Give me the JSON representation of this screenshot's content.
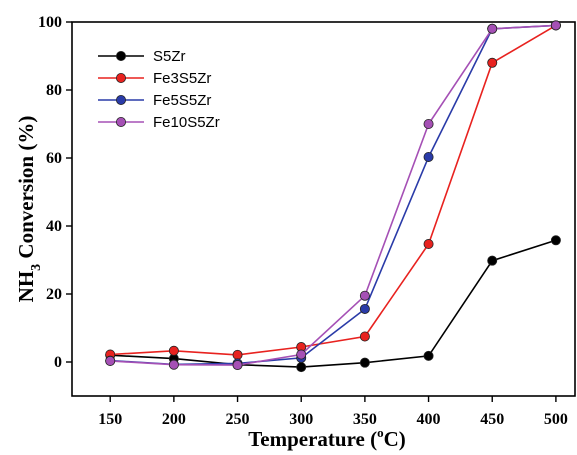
{
  "chart_data": {
    "type": "line",
    "xlabel": "Temperature (",
    "xlabel_sup": "o",
    "xlabel_after": "C)",
    "ylabel_prefix": "NH",
    "ylabel_sub": "3",
    "ylabel_suffix": " Conversion (%)",
    "x": [
      150,
      200,
      250,
      300,
      350,
      400,
      450,
      500
    ],
    "x_ticks": [
      "150",
      "200",
      "250",
      "300",
      "350",
      "400",
      "450",
      "500"
    ],
    "y_ticks": [
      "0",
      "20",
      "40",
      "60",
      "80",
      "100"
    ],
    "xlim": [
      120,
      515
    ],
    "ylim": [
      -10,
      100
    ],
    "grid": false,
    "legend_position": "top-left",
    "series": [
      {
        "name": "S5Zr",
        "color": "#000000",
        "values": [
          2.0,
          1.0,
          -0.8,
          -1.5,
          -0.2,
          1.8,
          29.8,
          35.8
        ]
      },
      {
        "name": "Fe3S5Zr",
        "color": "#e8221f",
        "values": [
          2.2,
          3.3,
          2.1,
          4.4,
          7.5,
          34.7,
          88.0,
          99.0
        ]
      },
      {
        "name": "Fe5S5Zr",
        "color": "#2a3ba8",
        "values": [
          0.4,
          -0.7,
          -0.4,
          1.2,
          15.6,
          60.3,
          98.0,
          99.0
        ]
      },
      {
        "name": "Fe10S5Zr",
        "color": "#a550b5",
        "values": [
          0.3,
          -0.8,
          -0.9,
          2.2,
          19.5,
          70.0,
          98.0,
          99.0
        ]
      }
    ]
  }
}
